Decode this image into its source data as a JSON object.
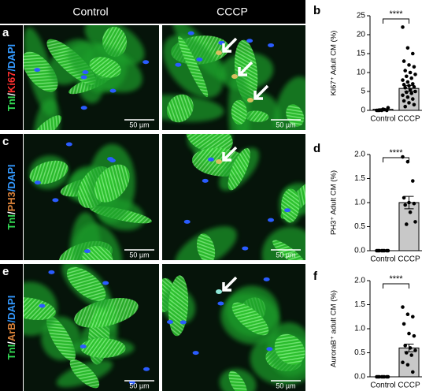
{
  "column_headers": [
    "Control",
    "CCCP"
  ],
  "scale_bar": "50 µm",
  "image_rows": [
    {
      "label": "a",
      "stain": [
        {
          "text": "TnI",
          "color": "#33dd55"
        },
        {
          "text": "/",
          "color": "#ffffff"
        },
        {
          "text": "Ki67",
          "color": "#ff3030"
        },
        {
          "text": "/DAPI",
          "color": "#3399ff"
        }
      ]
    },
    {
      "label": "c",
      "stain": [
        {
          "text": "TnI",
          "color": "#33dd55"
        },
        {
          "text": "/",
          "color": "#ffffff"
        },
        {
          "text": "PH3",
          "color": "#d9823a"
        },
        {
          "text": "/DAPI",
          "color": "#3399ff"
        }
      ]
    },
    {
      "label": "e",
      "stain": [
        {
          "text": "TnI",
          "color": "#33dd55"
        },
        {
          "text": "/",
          "color": "#ffffff"
        },
        {
          "text": "ArB",
          "color": "#d9823a"
        },
        {
          "text": "/DAPI",
          "color": "#3399ff"
        }
      ]
    }
  ],
  "chart_data": [
    {
      "type": "bar",
      "panel": "b",
      "y_label": "Ki67⁺ Adult CM (%)",
      "categories": [
        "Control",
        "CCCP"
      ],
      "values": [
        0.3,
        5.8
      ],
      "errors": [
        0.15,
        0.8
      ],
      "color": "#c8c8c8",
      "annotation": "****",
      "points": [
        [
          0,
          0,
          0,
          0,
          0.3,
          0.7,
          0,
          0.2
        ],
        [
          22,
          16.5,
          15,
          13,
          12,
          11.5,
          10.5,
          10,
          9.5,
          9,
          8.5,
          8,
          7.5,
          7,
          6.8,
          6.5,
          6.2,
          6,
          5.5,
          5,
          4.8,
          4.5,
          4,
          3.5,
          3,
          2.5,
          2,
          1.5,
          1
        ]
      ],
      "ylim": [
        0,
        25
      ],
      "yticks": [
        0,
        5,
        10,
        15,
        20,
        25
      ]
    },
    {
      "type": "bar",
      "panel": "d",
      "y_label": "PH3⁺ Adult CM (%)",
      "categories": [
        "Control",
        "CCCP"
      ],
      "values": [
        0,
        1.0
      ],
      "errors": [
        0,
        0.13
      ],
      "color": "#c8c8c8",
      "annotation": "****",
      "points": [
        [
          0,
          0,
          0,
          0,
          0,
          0,
          0,
          0
        ],
        [
          1.95,
          1.85,
          1.45,
          1.1,
          1.0,
          0.98,
          0.95,
          0.8,
          0.6,
          0.55
        ]
      ],
      "ylim": [
        0,
        2
      ],
      "yticks": [
        {
          "value": 0,
          "label": "0.0"
        },
        {
          "value": 0.5,
          "label": "0.5"
        },
        {
          "value": 1,
          "label": "1.0"
        },
        {
          "value": 1.5,
          "label": "1.5"
        },
        {
          "value": 2,
          "label": "2.0"
        }
      ]
    },
    {
      "type": "bar",
      "panel": "f",
      "y_label": "AuroraB⁺ adult CM (%)",
      "categories": [
        "Control",
        "CCCP"
      ],
      "values": [
        0,
        0.6
      ],
      "errors": [
        0,
        0.08
      ],
      "color": "#c8c8c8",
      "annotation": "****",
      "points": [
        [
          0,
          0,
          0,
          0,
          0,
          0,
          0,
          0
        ],
        [
          1.45,
          1.3,
          1.25,
          1.1,
          0.9,
          0.85,
          0.65,
          0.6,
          0.55,
          0.5,
          0.45,
          0.3,
          0.25,
          0.1
        ]
      ],
      "ylim": [
        0,
        2
      ],
      "yticks": [
        {
          "value": 0,
          "label": "0.0"
        },
        {
          "value": 0.5,
          "label": "0.5"
        },
        {
          "value": 1,
          "label": "1.0"
        },
        {
          "value": 1.5,
          "label": "1.5"
        },
        {
          "value": 2,
          "label": "2.0"
        }
      ]
    }
  ]
}
